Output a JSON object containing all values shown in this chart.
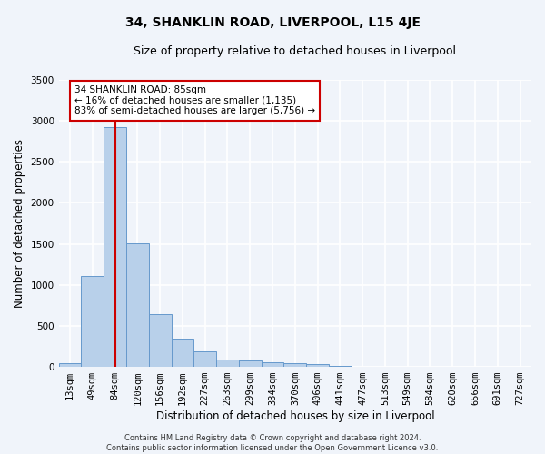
{
  "title": "34, SHANKLIN ROAD, LIVERPOOL, L15 4JE",
  "subtitle": "Size of property relative to detached houses in Liverpool",
  "xlabel": "Distribution of detached houses by size in Liverpool",
  "ylabel": "Number of detached properties",
  "footer_line1": "Contains HM Land Registry data © Crown copyright and database right 2024.",
  "footer_line2": "Contains public sector information licensed under the Open Government Licence v3.0.",
  "bar_labels": [
    "13sqm",
    "49sqm",
    "84sqm",
    "120sqm",
    "156sqm",
    "192sqm",
    "227sqm",
    "263sqm",
    "299sqm",
    "334sqm",
    "370sqm",
    "406sqm",
    "441sqm",
    "477sqm",
    "513sqm",
    "549sqm",
    "584sqm",
    "620sqm",
    "656sqm",
    "691sqm",
    "727sqm"
  ],
  "bar_values": [
    50,
    1110,
    2920,
    1510,
    640,
    340,
    190,
    90,
    80,
    55,
    40,
    30,
    10,
    5,
    3,
    2,
    0,
    0,
    0,
    0,
    0
  ],
  "bar_color": "#b8d0ea",
  "bar_edge_color": "#6699cc",
  "ylim": [
    0,
    3500
  ],
  "yticks": [
    0,
    500,
    1000,
    1500,
    2000,
    2500,
    3000,
    3500
  ],
  "red_line_x": 2,
  "annotation_title": "34 SHANKLIN ROAD: 85sqm",
  "annotation_line1": "← 16% of detached houses are smaller (1,135)",
  "annotation_line2": "83% of semi-detached houses are larger (5,756) →",
  "annotation_color": "#cc0000",
  "bg_color": "#f0f4fa",
  "plot_bg_color": "#f0f4fa",
  "grid_color": "#ffffff",
  "title_fontsize": 10,
  "subtitle_fontsize": 9,
  "axis_label_fontsize": 8.5,
  "tick_fontsize": 7.5,
  "annotation_fontsize": 7.5,
  "footer_fontsize": 6
}
